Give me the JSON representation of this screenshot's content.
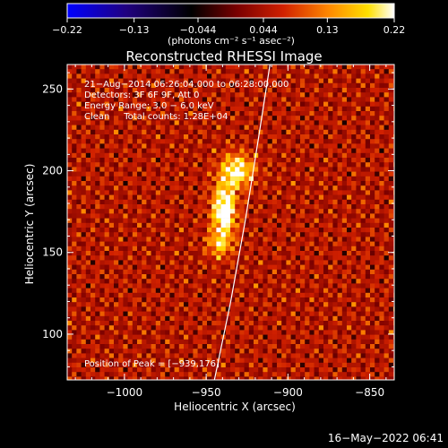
{
  "chart_data": {
    "type": "heatmap",
    "title": "Reconstructed RHESSI Image",
    "xlabel": "Heliocentric X (arcsec)",
    "ylabel": "Heliocentric Y (arcsec)",
    "xlim": [
      -1035,
      -835
    ],
    "ylim": [
      72,
      265
    ],
    "x_ticks": [
      -1000,
      -950,
      -900,
      -850
    ],
    "x_tick_labels": [
      "−1000",
      "−950",
      "−900",
      "−850"
    ],
    "y_ticks": [
      100,
      150,
      200,
      250
    ],
    "y_tick_labels": [
      "100",
      "150",
      "200",
      "250"
    ],
    "colorbar": {
      "range": [
        -0.22,
        0.22
      ],
      "ticks": [
        -0.22,
        -0.13,
        -0.044,
        0.044,
        0.13,
        0.22
      ],
      "tick_labels": [
        "−0.22",
        "−0.13",
        "−0.044",
        "0.044",
        "0.13",
        "0.22"
      ],
      "units_label": "(photons cm⁻² s⁻¹ asec⁻²)",
      "colormap": [
        "#0000ff",
        "#200080",
        "#000000",
        "#7a0000",
        "#d02000",
        "#ff8800",
        "#ffe000",
        "#ffffff"
      ]
    },
    "annotations": [
      "21−Aug−2014 06:26:04.000 to 06:28:00.000",
      "Detectors: 3F 6F 9F, Att 0",
      "Energy Range: 3.0 − 6.0 keV",
      "Clean     Total counts: 1.28E+04"
    ],
    "peak_label": "Position of Peak = [−939,176]",
    "peak": {
      "x": -939,
      "y": 176,
      "value": 0.22
    },
    "sources": [
      {
        "x": -939,
        "y": 176,
        "sx": 5,
        "sy": 11,
        "amp": 0.22
      },
      {
        "x": -931,
        "y": 200,
        "sx": 7,
        "sy": 7,
        "amp": 0.18
      },
      {
        "x": -942,
        "y": 155,
        "sx": 5,
        "sy": 6,
        "amp": 0.11
      }
    ],
    "limb": [
      [
        -945,
        72
      ],
      [
        -935,
        120
      ],
      [
        -926,
        170
      ],
      [
        -918,
        220
      ],
      [
        -911,
        265
      ]
    ],
    "grid": false
  },
  "footer": {
    "timestamp": "16−May−2022 06:41"
  }
}
